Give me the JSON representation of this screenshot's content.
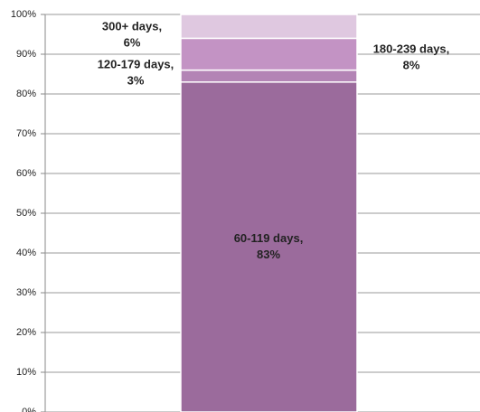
{
  "chart_data": {
    "type": "stacked-bar",
    "categories": [
      null
    ],
    "series": [
      {
        "name": "60-119 days,",
        "color": "#9b6b9c",
        "values": [
          83
        ],
        "value_labels": [
          "83%"
        ]
      },
      {
        "name": "120-179 days,",
        "color": "#b384b5",
        "values": [
          3
        ],
        "value_labels": [
          "3%"
        ]
      },
      {
        "name": "180-239 days,",
        "color": "#c393c4",
        "values": [
          8
        ],
        "value_labels": [
          "8%"
        ]
      },
      {
        "name": "300+ days,",
        "color": "#dfc8e0",
        "values": [
          6
        ],
        "value_labels": [
          "6%"
        ]
      }
    ],
    "ylim": [
      0,
      100
    ],
    "yticks": [
      {
        "value": 0,
        "label": "0%"
      },
      {
        "value": 10,
        "label": "10%"
      },
      {
        "value": 20,
        "label": "20%"
      },
      {
        "value": 30,
        "label": "30%"
      },
      {
        "value": 40,
        "label": "40%"
      },
      {
        "value": 50,
        "label": "50%"
      },
      {
        "value": 60,
        "label": "60%"
      },
      {
        "value": 70,
        "label": "70%"
      },
      {
        "value": 80,
        "label": "80%"
      },
      {
        "value": 90,
        "label": "90%"
      },
      {
        "value": 100,
        "label": "100%"
      }
    ],
    "grid": true
  }
}
